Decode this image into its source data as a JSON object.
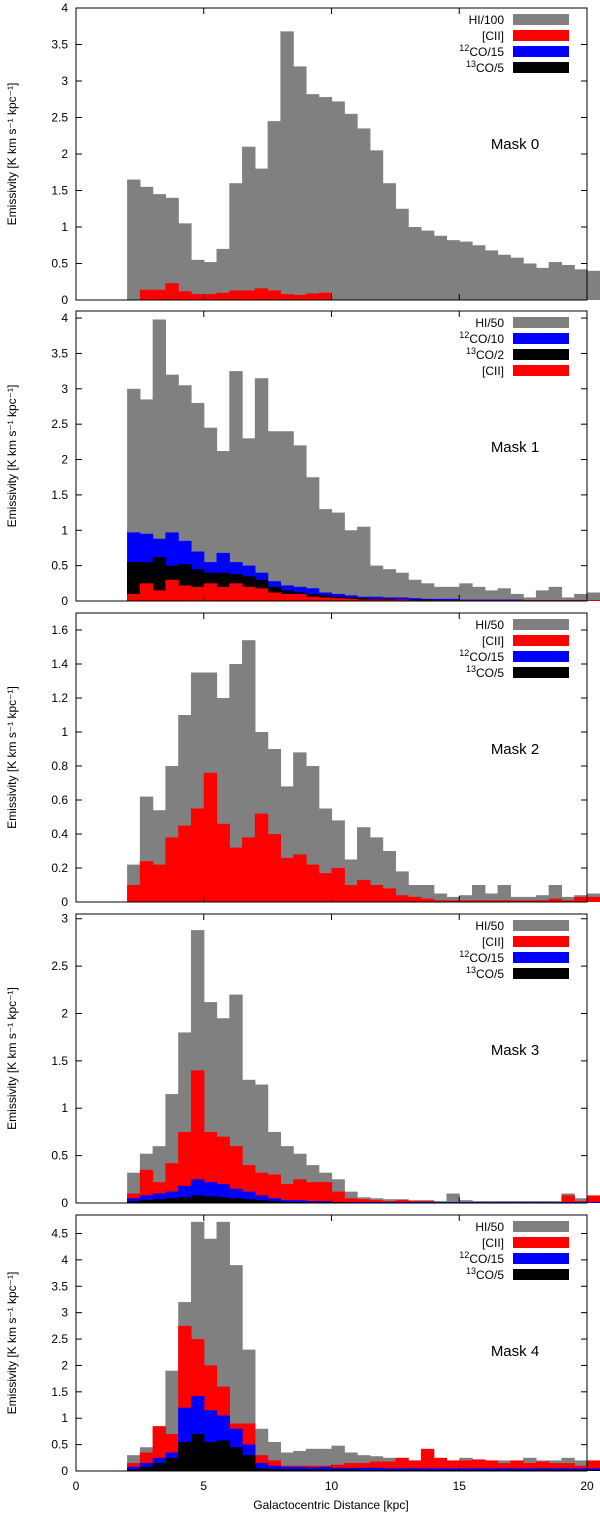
{
  "figure": {
    "xlabel": "Galactocentric Distance [kpc]",
    "ylabel": "Emissivity [K km s⁻¹ kpc⁻¹]",
    "xlim": [
      0,
      20
    ],
    "xticks": [
      "0",
      "5",
      "10",
      "15",
      "20"
    ],
    "colors": {
      "HI": "#808080",
      "CII": "#ff0000",
      "CO12": "#0000ff",
      "CO13": "#000000"
    }
  },
  "chart_data": [
    {
      "type": "bar",
      "title": "Mask 0",
      "ylim": [
        0,
        4
      ],
      "yticks": [
        "0",
        "0.5",
        "1",
        "1.5",
        "2",
        "2.5",
        "3",
        "3.5",
        "4"
      ],
      "bin_start": 2.0,
      "bin_width": 0.5,
      "legend": [
        {
          "key": "HI",
          "label": "HI/100"
        },
        {
          "key": "CII",
          "label": "[CII]"
        },
        {
          "key": "CO12",
          "label": "12CO/15",
          "sup": "12",
          "base": "CO/15"
        },
        {
          "key": "CO13",
          "label": "13CO/5",
          "sup": "13",
          "base": "CO/5"
        }
      ],
      "draw_order": [
        "HI",
        "CII",
        "CO12",
        "CO13"
      ],
      "series": {
        "HI": [
          1.65,
          1.55,
          1.45,
          1.4,
          1.05,
          0.55,
          0.52,
          0.7,
          1.6,
          2.1,
          1.8,
          2.45,
          3.68,
          3.2,
          2.82,
          2.78,
          2.72,
          2.55,
          2.35,
          2.05,
          1.6,
          1.25,
          1.0,
          0.95,
          0.88,
          0.82,
          0.8,
          0.75,
          0.68,
          0.62,
          0.58,
          0.5,
          0.44,
          0.52,
          0.48,
          0.42,
          0.4
        ],
        "CII": [
          0.0,
          0.14,
          0.14,
          0.23,
          0.12,
          0.08,
          0.08,
          0.1,
          0.13,
          0.13,
          0.16,
          0.13,
          0.08,
          0.07,
          0.09,
          0.1
        ],
        "CO12": [],
        "CO13": []
      }
    },
    {
      "type": "bar",
      "title": "Mask 1",
      "ylim": [
        0,
        4.1
      ],
      "yticks": [
        "0",
        "0.5",
        "1",
        "1.5",
        "2",
        "2.5",
        "3",
        "3.5",
        "4"
      ],
      "bin_start": 2.0,
      "bin_width": 0.5,
      "legend": [
        {
          "key": "HI",
          "label": "HI/50"
        },
        {
          "key": "CO12",
          "label": "12CO/10",
          "sup": "12",
          "base": "CO/10"
        },
        {
          "key": "CO13",
          "label": "13CO/2",
          "sup": "13",
          "base": "CO/2"
        },
        {
          "key": "CII",
          "label": "[CII]"
        }
      ],
      "draw_order": [
        "HI",
        "CO12",
        "CO13",
        "CII"
      ],
      "series": {
        "HI": [
          3.0,
          2.85,
          3.98,
          3.2,
          3.05,
          2.8,
          2.45,
          2.12,
          3.25,
          2.3,
          3.15,
          2.4,
          2.4,
          2.2,
          1.75,
          1.3,
          1.25,
          1.0,
          1.05,
          0.5,
          0.45,
          0.4,
          0.3,
          0.25,
          0.2,
          0.2,
          0.25,
          0.2,
          0.15,
          0.18,
          0.1,
          0.05,
          0.15,
          0.2,
          0.05,
          0.1,
          0.12
        ],
        "CO12": [
          0.97,
          0.95,
          0.88,
          0.97,
          0.85,
          0.7,
          0.55,
          0.68,
          0.55,
          0.5,
          0.4,
          0.28,
          0.22,
          0.2,
          0.18,
          0.12,
          0.1,
          0.08,
          0.06,
          0.06,
          0.05,
          0.05,
          0.04,
          0.03,
          0.03,
          0.03,
          0.02,
          0.02,
          0.02,
          0.02,
          0.02,
          0.01,
          0.01,
          0.01,
          0.01,
          0.01,
          0.01
        ],
        "CO13": [
          0.55,
          0.55,
          0.62,
          0.5,
          0.52,
          0.45,
          0.4,
          0.4,
          0.38,
          0.35,
          0.3,
          0.2,
          0.15,
          0.12,
          0.1,
          0.08,
          0.06,
          0.05,
          0.04,
          0.03,
          0.03,
          0.02,
          0.02,
          0.02,
          0.01,
          0.01,
          0.01,
          0.01,
          0.01,
          0.01,
          0.01,
          0.01,
          0.01,
          0.01,
          0.01,
          0.01,
          0.01
        ],
        "CII": [
          0.1,
          0.25,
          0.15,
          0.3,
          0.22,
          0.2,
          0.25,
          0.2,
          0.25,
          0.2,
          0.18,
          0.12,
          0.1,
          0.1,
          0.06,
          0.05,
          0.04,
          0.03,
          0.02,
          0.02,
          0.02,
          0.02,
          0.01,
          0.01,
          0.01,
          0.01,
          0.01,
          0.01,
          0.01,
          0.01,
          0.01,
          0.01,
          0.01,
          0.01,
          0.01,
          0.01,
          0.01
        ]
      }
    },
    {
      "type": "bar",
      "title": "Mask 2",
      "ylim": [
        0,
        1.7
      ],
      "yticks": [
        "0",
        "0.2",
        "0.4",
        "0.6",
        "0.8",
        "1",
        "1.2",
        "1.4",
        "1.6"
      ],
      "bin_start": 2.0,
      "bin_width": 0.5,
      "legend": [
        {
          "key": "HI",
          "label": "HI/50"
        },
        {
          "key": "CII",
          "label": "[CII]"
        },
        {
          "key": "CO12",
          "label": "12CO/15",
          "sup": "12",
          "base": "CO/15"
        },
        {
          "key": "CO13",
          "label": "13CO/5",
          "sup": "13",
          "base": "CO/5"
        }
      ],
      "draw_order": [
        "HI",
        "CII",
        "CO12",
        "CO13"
      ],
      "series": {
        "HI": [
          0.22,
          0.62,
          0.54,
          0.8,
          1.1,
          1.35,
          1.35,
          1.2,
          1.4,
          1.54,
          1.0,
          0.9,
          0.68,
          0.88,
          0.8,
          0.55,
          0.48,
          0.25,
          0.44,
          0.38,
          0.3,
          0.18,
          0.1,
          0.1,
          0.05,
          0.03,
          0.04,
          0.1,
          0.05,
          0.1,
          0.03,
          0.03,
          0.04,
          0.1,
          0.03,
          0.04,
          0.05
        ],
        "CII": [
          0.1,
          0.24,
          0.22,
          0.38,
          0.45,
          0.55,
          0.76,
          0.46,
          0.32,
          0.38,
          0.52,
          0.4,
          0.26,
          0.28,
          0.22,
          0.17,
          0.2,
          0.1,
          0.13,
          0.1,
          0.08,
          0.04,
          0.03,
          0.02,
          0.01,
          0.01,
          0.01,
          0.01,
          0.01,
          0.01,
          0.01,
          0.01,
          0.01,
          0.02,
          0.01,
          0.03,
          0.03
        ],
        "CO12": [],
        "CO13": []
      }
    },
    {
      "type": "bar",
      "title": "Mask 3",
      "ylim": [
        0,
        3.05
      ],
      "yticks": [
        "0",
        "0.5",
        "1",
        "1.5",
        "2",
        "2.5",
        "3"
      ],
      "bin_start": 2.0,
      "bin_width": 0.5,
      "legend": [
        {
          "key": "HI",
          "label": "HI/50"
        },
        {
          "key": "CII",
          "label": "[CII]"
        },
        {
          "key": "CO12",
          "label": "12CO/15",
          "sup": "12",
          "base": "CO/15"
        },
        {
          "key": "CO13",
          "label": "13CO/5",
          "sup": "13",
          "base": "CO/5"
        }
      ],
      "draw_order": [
        "HI",
        "CII",
        "CO12",
        "CO13"
      ],
      "series": {
        "HI": [
          0.32,
          0.52,
          0.6,
          1.15,
          1.8,
          2.88,
          2.12,
          1.95,
          2.2,
          1.3,
          1.25,
          0.75,
          0.6,
          0.52,
          0.4,
          0.32,
          0.25,
          0.12,
          0.06,
          0.05,
          0.04,
          0.04,
          0.03,
          0.03,
          0.02,
          0.1,
          0.03,
          0.02,
          0.02,
          0.02,
          0.02,
          0.02,
          0.02,
          0.02,
          0.1,
          0.05,
          0.05
        ],
        "CII": [
          0.1,
          0.35,
          0.22,
          0.42,
          0.75,
          1.4,
          0.75,
          0.7,
          0.6,
          0.4,
          0.32,
          0.3,
          0.2,
          0.25,
          0.22,
          0.22,
          0.12,
          0.05,
          0.04,
          0.03,
          0.02,
          0.03,
          0.02,
          0.02,
          0.01,
          0.01,
          0.01,
          0.01,
          0.01,
          0.01,
          0.01,
          0.01,
          0.01,
          0.01,
          0.08,
          0.02,
          0.08
        ],
        "CO12": [
          0.05,
          0.08,
          0.1,
          0.12,
          0.18,
          0.25,
          0.22,
          0.2,
          0.15,
          0.12,
          0.08,
          0.05,
          0.03,
          0.03,
          0.02,
          0.02,
          0.01,
          0.01,
          0.01,
          0.01,
          0.01,
          0.01,
          0.01,
          0.01,
          0.01,
          0.01,
          0.01,
          0.01,
          0.01,
          0.01,
          0.01,
          0.01,
          0.01,
          0.01,
          0.01,
          0.01,
          0.01
        ],
        "CO13": [
          0.02,
          0.03,
          0.04,
          0.05,
          0.06,
          0.08,
          0.07,
          0.06,
          0.05,
          0.04,
          0.03,
          0.02,
          0.01,
          0.01,
          0.01,
          0.01,
          0.01,
          0.0,
          0.0,
          0.0,
          0.0,
          0.0,
          0.0,
          0.0,
          0.0,
          0.0,
          0.0,
          0.0,
          0.0,
          0.0,
          0.0,
          0.0,
          0.0,
          0.0,
          0.0,
          0.0,
          0.0
        ]
      }
    },
    {
      "type": "bar",
      "title": "Mask 4",
      "ylim": [
        0,
        4.85
      ],
      "yticks": [
        "0",
        "0.5",
        "1",
        "1.5",
        "2",
        "2.5",
        "3",
        "3.5",
        "4",
        "4.5"
      ],
      "bin_start": 2.0,
      "bin_width": 0.5,
      "legend": [
        {
          "key": "HI",
          "label": "HI/50"
        },
        {
          "key": "CII",
          "label": "[CII]"
        },
        {
          "key": "CO12",
          "label": "12CO/15",
          "sup": "12",
          "base": "CO/15"
        },
        {
          "key": "CO13",
          "label": "13CO/5",
          "sup": "13",
          "base": "CO/5"
        }
      ],
      "draw_order": [
        "HI",
        "CII",
        "CO12",
        "CO13"
      ],
      "series": {
        "HI": [
          0.3,
          0.45,
          0.8,
          1.9,
          3.2,
          4.72,
          4.4,
          4.72,
          3.9,
          2.3,
          0.8,
          0.55,
          0.35,
          0.38,
          0.42,
          0.42,
          0.48,
          0.35,
          0.3,
          0.28,
          0.25,
          0.2,
          0.2,
          0.22,
          0.2,
          0.2,
          0.25,
          0.2,
          0.2,
          0.2,
          0.15,
          0.25,
          0.2,
          0.2,
          0.25,
          0.2,
          0.2
        ],
        "CII": [
          0.15,
          0.35,
          0.85,
          0.7,
          2.75,
          2.5,
          2.0,
          1.6,
          0.9,
          0.9,
          0.3,
          0.2,
          0.1,
          0.1,
          0.1,
          0.1,
          0.12,
          0.15,
          0.15,
          0.18,
          0.18,
          0.25,
          0.2,
          0.42,
          0.25,
          0.2,
          0.2,
          0.22,
          0.2,
          0.15,
          0.2,
          0.15,
          0.18,
          0.15,
          0.15,
          0.1,
          0.2
        ],
        "CO12": [
          0.08,
          0.15,
          0.25,
          0.35,
          1.2,
          1.42,
          1.15,
          1.05,
          0.8,
          0.5,
          0.15,
          0.1,
          0.08,
          0.08,
          0.07,
          0.08,
          0.06,
          0.06,
          0.06,
          0.06,
          0.05,
          0.05,
          0.05,
          0.05,
          0.05,
          0.05,
          0.05,
          0.05,
          0.05,
          0.05,
          0.05,
          0.05,
          0.05,
          0.05,
          0.05,
          0.05,
          0.05
        ],
        "CO13": [
          0.03,
          0.08,
          0.15,
          0.25,
          0.55,
          0.7,
          0.55,
          0.58,
          0.45,
          0.3,
          0.05,
          0.04,
          0.03,
          0.03,
          0.03,
          0.03,
          0.03,
          0.03,
          0.02,
          0.02,
          0.02,
          0.02,
          0.02,
          0.02,
          0.02,
          0.02,
          0.02,
          0.02,
          0.02,
          0.02,
          0.02,
          0.02,
          0.02,
          0.02,
          0.02,
          0.02,
          0.02
        ]
      }
    }
  ]
}
